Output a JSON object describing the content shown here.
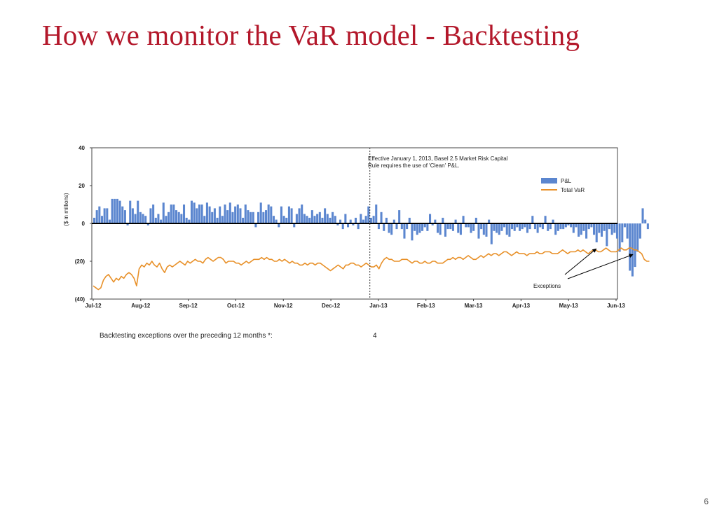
{
  "slide": {
    "title": "How we monitor the VaR model - Backtesting",
    "page_number": "6",
    "footnote_label": "Backtesting exceptions over the preceding 12 months *:",
    "footnote_value": "4"
  },
  "colors": {
    "title": "#b3172a",
    "pnl": "#5b86cf",
    "var": "#e8912a",
    "axis": "#000000"
  },
  "chart_data": {
    "type": "bar",
    "title": "",
    "xlabel": "",
    "ylabel": "($ in millions)",
    "ylim": [
      -40,
      40
    ],
    "yticks": [
      40,
      20,
      0,
      -20,
      -40
    ],
    "ytick_labels": [
      "40",
      "20",
      "0",
      "(20)",
      "(40)"
    ],
    "xtick_labels": [
      "Jul-12",
      "Aug-12",
      "Sep-12",
      "Oct-12",
      "Nov-12",
      "Dec-12",
      "Jan-13",
      "Feb-13",
      "Mar-13",
      "Apr-13",
      "May-13",
      "Jun-13"
    ],
    "grid": false,
    "legend_position": "top-right",
    "annotation_text": "Effective January 1, 2013, Basel 2.5 Market Risk Capital Rule requires the use of 'Clean' P&L.",
    "annotation_lines": [
      "Effective January 1, 2013, Basel 2.5 Market Risk Capital",
      "Rule requires the use of 'Clean' P&L."
    ],
    "divider_at_month": 5.82,
    "exceptions_label": "Exceptions",
    "exceptions_at_month": [
      10.42,
      10.58,
      11.22,
      11.35
    ],
    "series": [
      {
        "name": "P&L",
        "type": "bar",
        "month_start": 0,
        "month_end": 11.7,
        "values": [
          3,
          7,
          9,
          4,
          8,
          8,
          2,
          13,
          13,
          13,
          12,
          9,
          7,
          -1,
          12,
          8,
          5,
          12,
          6,
          5,
          4,
          -1,
          8,
          10,
          3,
          5,
          2,
          11,
          4,
          6,
          10,
          10,
          7,
          6,
          5,
          10,
          3,
          2,
          12,
          11,
          8,
          10,
          10,
          4,
          11,
          9,
          6,
          8,
          3,
          9,
          4,
          10,
          7,
          11,
          6,
          9,
          10,
          8,
          3,
          10,
          7,
          6,
          6,
          -2,
          6,
          11,
          6,
          7,
          10,
          9,
          4,
          2,
          -2,
          9,
          4,
          3,
          9,
          8,
          -2,
          5,
          8,
          10,
          5,
          4,
          3,
          7,
          4,
          5,
          6,
          3,
          8,
          5,
          3,
          6,
          4,
          -1,
          2,
          -3,
          5,
          -2,
          2,
          -1,
          3,
          -3,
          5,
          2,
          4,
          9,
          3,
          4,
          10,
          -3,
          6,
          -4,
          3,
          -5,
          -6,
          2,
          -3,
          7,
          -3,
          -8,
          -3,
          3,
          -9,
          -4,
          -6,
          -5,
          -4,
          -2,
          -4,
          5,
          -1,
          2,
          -5,
          -6,
          3,
          -7,
          -3,
          -3,
          -4,
          2,
          -5,
          -6,
          4,
          -2,
          -2,
          -5,
          -4,
          3,
          -8,
          -3,
          -6,
          -7,
          2,
          -11,
          -4,
          -5,
          -6,
          -4,
          -2,
          -6,
          -7,
          -3,
          -4,
          -2,
          -4,
          -3,
          -2,
          -5,
          -3,
          4,
          -3,
          -5,
          -2,
          -3,
          4,
          -4,
          -3,
          2,
          -6,
          -4,
          -3,
          -3,
          -2,
          -1,
          -2,
          -5,
          -2,
          -7,
          -6,
          -4,
          -8,
          -3,
          -2,
          -6,
          -10,
          -5,
          -7,
          -4,
          -12,
          -3,
          -6,
          -5,
          -8,
          -15,
          -10,
          -2,
          -8,
          -25,
          -28,
          -23,
          -15,
          -8,
          8,
          2,
          -3
        ]
      },
      {
        "name": "Total VaR",
        "type": "line",
        "month_start": 0,
        "month_end": 11.7,
        "values": [
          -33,
          -34,
          -35,
          -34,
          -30,
          -28,
          -27,
          -29,
          -31,
          -29,
          -30,
          -28,
          -29,
          -27,
          -26,
          -27,
          -29,
          -33,
          -24,
          -22,
          -23,
          -21,
          -22,
          -20,
          -22,
          -23,
          -21,
          -24,
          -26,
          -23,
          -22,
          -23,
          -22,
          -21,
          -20,
          -21,
          -22,
          -20,
          -21,
          -20,
          -19,
          -20,
          -20,
          -21,
          -19,
          -18,
          -19,
          -20,
          -19,
          -18,
          -18,
          -19,
          -21,
          -20,
          -20,
          -20,
          -21,
          -21,
          -22,
          -21,
          -20,
          -21,
          -20,
          -19,
          -19,
          -19,
          -18,
          -19,
          -18,
          -19,
          -19,
          -20,
          -20,
          -19,
          -20,
          -19,
          -20,
          -21,
          -20,
          -21,
          -21,
          -22,
          -22,
          -21,
          -22,
          -21,
          -21,
          -22,
          -21,
          -21,
          -22,
          -23,
          -24,
          -25,
          -24,
          -23,
          -22,
          -23,
          -24,
          -22,
          -22,
          -21,
          -21,
          -22,
          -22,
          -23,
          -22,
          -21,
          -22,
          -23,
          -23,
          -22,
          -24,
          -21,
          -19,
          -18,
          -19,
          -19,
          -20,
          -20,
          -20,
          -19,
          -19,
          -19,
          -20,
          -21,
          -20,
          -20,
          -21,
          -21,
          -20,
          -21,
          -21,
          -20,
          -20,
          -21,
          -21,
          -21,
          -20,
          -19,
          -19,
          -18,
          -19,
          -18,
          -18,
          -19,
          -18,
          -17,
          -18,
          -19,
          -19,
          -18,
          -17,
          -18,
          -17,
          -16,
          -17,
          -16,
          -16,
          -17,
          -16,
          -15,
          -15,
          -16,
          -17,
          -16,
          -15,
          -16,
          -16,
          -16,
          -17,
          -16,
          -16,
          -16,
          -15,
          -16,
          -16,
          -15,
          -15,
          -15,
          -16,
          -16,
          -16,
          -15,
          -14,
          -15,
          -16,
          -15,
          -15,
          -15,
          -14,
          -15,
          -14,
          -15,
          -16,
          -15,
          -14,
          -14,
          -15,
          -15,
          -14,
          -13,
          -14,
          -15,
          -15,
          -15,
          -14,
          -13,
          -14,
          -14,
          -13,
          -13,
          -14,
          -14,
          -15,
          -16,
          -19,
          -20,
          -20
        ]
      }
    ]
  }
}
